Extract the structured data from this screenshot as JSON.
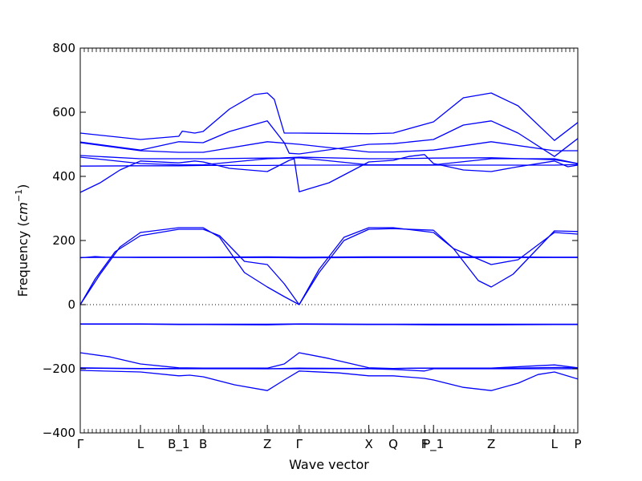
{
  "chart_data": {
    "type": "line",
    "title": "",
    "xlabel": "Wave vector",
    "ylabel": "Frequency (cm⁻¹)",
    "ylabel_main": "Frequency (",
    "ylabel_unit": "cm",
    "ylabel_exp": "−1",
    "ylabel_close": ")",
    "ylim": [
      -400,
      800
    ],
    "yticks": [
      -400,
      -200,
      0,
      200,
      400,
      600,
      800
    ],
    "xlim": [
      0,
      1
    ],
    "xticks": [
      {
        "label": "Γ",
        "x": 0.0
      },
      {
        "label": "L",
        "x": 0.121
      },
      {
        "label": "B_1",
        "x": 0.198
      },
      {
        "label": "B",
        "x": 0.247
      },
      {
        "label": "Z",
        "x": 0.376
      },
      {
        "label": "Γ",
        "x": 0.44
      },
      {
        "label": "X",
        "x": 0.58
      },
      {
        "label": "Q",
        "x": 0.629
      },
      {
        "label": "F",
        "x": 0.692
      },
      {
        "label": "P_1",
        "x": 0.71
      },
      {
        "label": "Z",
        "x": 0.826
      },
      {
        "label": "L",
        "x": 0.953
      },
      {
        "label": "P",
        "x": 1.0
      }
    ],
    "zero_line": true,
    "line_color": "#0000ff",
    "series": [
      {
        "points": [
          [
            0,
            -205
          ],
          [
            0.121,
            -210
          ],
          [
            0.198,
            -222
          ],
          [
            0.22,
            -220
          ],
          [
            0.247,
            -225
          ],
          [
            0.31,
            -250
          ],
          [
            0.376,
            -268
          ],
          [
            0.41,
            -235
          ],
          [
            0.44,
            -207
          ],
          [
            0.52,
            -213
          ],
          [
            0.58,
            -222
          ],
          [
            0.629,
            -222
          ],
          [
            0.692,
            -230
          ],
          [
            0.71,
            -235
          ],
          [
            0.77,
            -258
          ],
          [
            0.826,
            -268
          ],
          [
            0.88,
            -245
          ],
          [
            0.92,
            -218
          ],
          [
            0.953,
            -210
          ],
          [
            1.0,
            -232
          ]
        ]
      },
      {
        "points": [
          [
            0,
            -198
          ],
          [
            0.121,
            -200
          ],
          [
            0.198,
            -200
          ],
          [
            0.247,
            -200
          ],
          [
            0.376,
            -200
          ],
          [
            0.44,
            -200
          ],
          [
            0.58,
            -200
          ],
          [
            0.629,
            -202
          ],
          [
            0.692,
            -207
          ],
          [
            0.71,
            -200
          ],
          [
            0.826,
            -200
          ],
          [
            0.953,
            -200
          ],
          [
            1.0,
            -200
          ]
        ]
      },
      {
        "points": [
          [
            0,
            -197
          ],
          [
            0.121,
            -199
          ],
          [
            0.198,
            -199
          ],
          [
            0.247,
            -199
          ],
          [
            0.376,
            -200
          ],
          [
            0.44,
            -198
          ],
          [
            0.58,
            -199
          ],
          [
            0.629,
            -199
          ],
          [
            0.692,
            -198
          ],
          [
            0.71,
            -198
          ],
          [
            0.826,
            -199
          ],
          [
            0.953,
            -196
          ],
          [
            1.0,
            -197
          ]
        ]
      },
      {
        "points": [
          [
            0,
            -150
          ],
          [
            0.06,
            -163
          ],
          [
            0.121,
            -185
          ],
          [
            0.198,
            -197
          ],
          [
            0.247,
            -198
          ],
          [
            0.376,
            -198
          ],
          [
            0.41,
            -185
          ],
          [
            0.44,
            -150
          ],
          [
            0.5,
            -168
          ],
          [
            0.58,
            -197
          ],
          [
            0.629,
            -199
          ],
          [
            0.71,
            -198
          ],
          [
            0.826,
            -198
          ],
          [
            0.9,
            -192
          ],
          [
            0.953,
            -188
          ],
          [
            1.0,
            -197
          ]
        ]
      },
      {
        "points": [
          [
            0,
            -61
          ],
          [
            0.121,
            -61
          ],
          [
            0.198,
            -62
          ],
          [
            0.247,
            -62
          ],
          [
            0.376,
            -63
          ],
          [
            0.44,
            -61
          ],
          [
            0.58,
            -62
          ],
          [
            0.629,
            -62
          ],
          [
            0.71,
            -63
          ],
          [
            0.826,
            -63
          ],
          [
            0.953,
            -62
          ],
          [
            1.0,
            -62
          ]
        ]
      },
      {
        "points": [
          [
            0,
            -60
          ],
          [
            0.121,
            -60
          ],
          [
            0.198,
            -61
          ],
          [
            0.247,
            -61
          ],
          [
            0.376,
            -61
          ],
          [
            0.44,
            -60
          ],
          [
            0.58,
            -61
          ],
          [
            0.629,
            -61
          ],
          [
            0.71,
            -61
          ],
          [
            0.826,
            -61
          ],
          [
            0.953,
            -61
          ],
          [
            1.0,
            -61
          ]
        ]
      },
      {
        "points": [
          [
            0,
            0
          ],
          [
            0.03,
            80
          ],
          [
            0.07,
            165
          ],
          [
            0.121,
            215
          ],
          [
            0.198,
            235
          ],
          [
            0.247,
            235
          ],
          [
            0.28,
            215
          ],
          [
            0.33,
            135
          ],
          [
            0.376,
            125
          ],
          [
            0.41,
            65
          ],
          [
            0.44,
            0
          ],
          [
            0.48,
            110
          ],
          [
            0.53,
            210
          ],
          [
            0.58,
            240
          ],
          [
            0.629,
            240
          ],
          [
            0.71,
            225
          ],
          [
            0.75,
            175
          ],
          [
            0.826,
            125
          ],
          [
            0.88,
            140
          ],
          [
            0.953,
            225
          ],
          [
            1.0,
            220
          ]
        ]
      },
      {
        "points": [
          [
            0,
            0
          ],
          [
            0.04,
            95
          ],
          [
            0.08,
            180
          ],
          [
            0.121,
            225
          ],
          [
            0.198,
            240
          ],
          [
            0.247,
            240
          ],
          [
            0.28,
            210
          ],
          [
            0.33,
            100
          ],
          [
            0.376,
            55
          ],
          [
            0.41,
            25
          ],
          [
            0.44,
            0
          ],
          [
            0.48,
            100
          ],
          [
            0.53,
            200
          ],
          [
            0.58,
            235
          ],
          [
            0.629,
            237
          ],
          [
            0.71,
            232
          ],
          [
            0.75,
            175
          ],
          [
            0.8,
            75
          ],
          [
            0.826,
            55
          ],
          [
            0.87,
            95
          ],
          [
            0.953,
            230
          ],
          [
            1.0,
            228
          ]
        ]
      },
      {
        "points": [
          [
            0,
            147
          ],
          [
            0.121,
            148
          ],
          [
            0.198,
            148
          ],
          [
            0.247,
            148
          ],
          [
            0.376,
            149
          ],
          [
            0.44,
            148
          ],
          [
            0.58,
            149
          ],
          [
            0.629,
            149
          ],
          [
            0.71,
            149
          ],
          [
            0.826,
            149
          ],
          [
            0.953,
            148
          ],
          [
            1.0,
            148
          ]
        ]
      },
      {
        "points": [
          [
            0,
            146
          ],
          [
            0.03,
            150
          ],
          [
            0.05,
            148
          ],
          [
            0.121,
            147
          ],
          [
            0.198,
            147
          ],
          [
            0.247,
            147
          ],
          [
            0.376,
            147
          ],
          [
            0.44,
            146
          ],
          [
            0.58,
            147
          ],
          [
            0.629,
            147
          ],
          [
            0.71,
            147
          ],
          [
            0.826,
            147
          ],
          [
            0.953,
            147
          ],
          [
            1.0,
            147
          ]
        ]
      },
      {
        "points": [
          [
            0,
            350
          ],
          [
            0.04,
            380
          ],
          [
            0.08,
            420
          ],
          [
            0.121,
            448
          ],
          [
            0.198,
            442
          ],
          [
            0.23,
            448
          ],
          [
            0.247,
            445
          ],
          [
            0.3,
            425
          ],
          [
            0.376,
            415
          ],
          [
            0.42,
            450
          ],
          [
            0.43,
            455
          ],
          [
            0.44,
            352
          ],
          [
            0.5,
            380
          ],
          [
            0.58,
            445
          ],
          [
            0.629,
            450
          ],
          [
            0.66,
            462
          ],
          [
            0.692,
            468
          ],
          [
            0.71,
            440
          ],
          [
            0.77,
            420
          ],
          [
            0.826,
            415
          ],
          [
            0.88,
            430
          ],
          [
            0.953,
            448
          ],
          [
            0.98,
            430
          ],
          [
            1.0,
            435
          ]
        ]
      },
      {
        "points": [
          [
            0,
            432
          ],
          [
            0.121,
            433
          ],
          [
            0.198,
            433
          ],
          [
            0.247,
            434
          ],
          [
            0.376,
            434
          ],
          [
            0.44,
            435
          ],
          [
            0.58,
            435
          ],
          [
            0.629,
            435
          ],
          [
            0.71,
            435
          ],
          [
            0.826,
            435
          ],
          [
            0.953,
            435
          ],
          [
            1.0,
            437
          ]
        ]
      },
      {
        "points": [
          [
            0,
            460
          ],
          [
            0.121,
            440
          ],
          [
            0.198,
            436
          ],
          [
            0.247,
            436
          ],
          [
            0.376,
            455
          ],
          [
            0.44,
            458
          ],
          [
            0.58,
            436
          ],
          [
            0.629,
            436
          ],
          [
            0.71,
            436
          ],
          [
            0.826,
            455
          ],
          [
            0.953,
            455
          ],
          [
            1.0,
            440
          ]
        ]
      },
      {
        "points": [
          [
            0,
            465
          ],
          [
            0.121,
            455
          ],
          [
            0.198,
            455
          ],
          [
            0.247,
            455
          ],
          [
            0.376,
            457
          ],
          [
            0.4,
            457
          ],
          [
            0.44,
            460
          ],
          [
            0.58,
            455
          ],
          [
            0.629,
            455
          ],
          [
            0.71,
            457
          ],
          [
            0.826,
            458
          ],
          [
            0.953,
            452
          ],
          [
            1.0,
            440
          ]
        ]
      },
      {
        "points": [
          [
            0,
            505
          ],
          [
            0.121,
            480
          ],
          [
            0.198,
            475
          ],
          [
            0.247,
            475
          ],
          [
            0.376,
            508
          ],
          [
            0.44,
            500
          ],
          [
            0.58,
            476
          ],
          [
            0.629,
            476
          ],
          [
            0.71,
            482
          ],
          [
            0.826,
            508
          ],
          [
            0.953,
            480
          ],
          [
            1.0,
            480
          ]
        ]
      },
      {
        "points": [
          [
            0,
            507
          ],
          [
            0.121,
            482
          ],
          [
            0.198,
            508
          ],
          [
            0.247,
            505
          ],
          [
            0.3,
            540
          ],
          [
            0.376,
            573
          ],
          [
            0.41,
            505
          ],
          [
            0.42,
            472
          ],
          [
            0.44,
            470
          ],
          [
            0.58,
            500
          ],
          [
            0.629,
            502
          ],
          [
            0.71,
            515
          ],
          [
            0.77,
            560
          ],
          [
            0.826,
            573
          ],
          [
            0.88,
            535
          ],
          [
            0.953,
            462
          ],
          [
            1.0,
            518
          ]
        ]
      },
      {
        "points": [
          [
            0,
            535
          ],
          [
            0.121,
            515
          ],
          [
            0.198,
            525
          ],
          [
            0.205,
            541
          ],
          [
            0.23,
            535
          ],
          [
            0.247,
            540
          ],
          [
            0.3,
            610
          ],
          [
            0.35,
            655
          ],
          [
            0.376,
            660
          ],
          [
            0.39,
            640
          ],
          [
            0.41,
            535
          ],
          [
            0.44,
            535
          ],
          [
            0.58,
            533
          ],
          [
            0.629,
            535
          ],
          [
            0.71,
            570
          ],
          [
            0.77,
            645
          ],
          [
            0.826,
            660
          ],
          [
            0.88,
            620
          ],
          [
            0.953,
            512
          ],
          [
            1.0,
            568
          ]
        ]
      }
    ]
  }
}
